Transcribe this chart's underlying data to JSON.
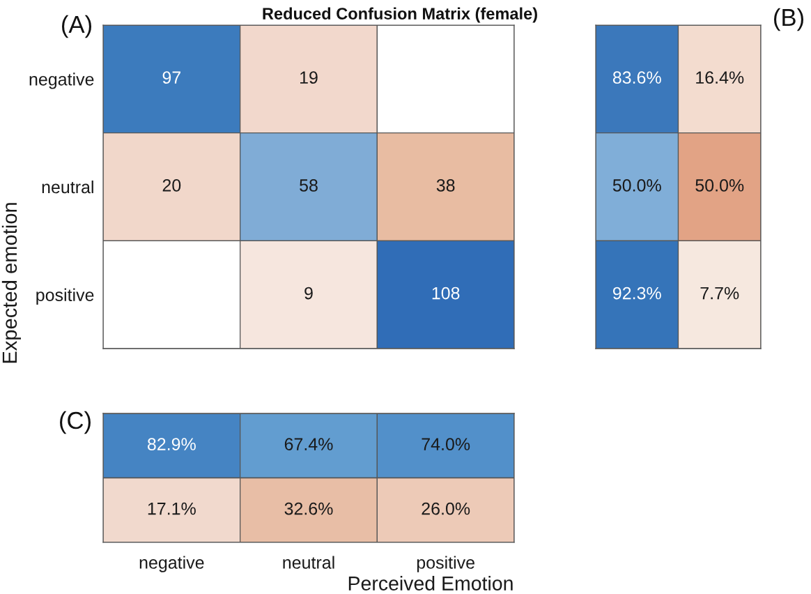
{
  "chart_data": [
    {
      "type": "heatmap",
      "title": "Reduced Confusion Matrix (female)",
      "ylabel": "Expected emotion",
      "categories": [
        null,
        null,
        null
      ],
      "y_categories": [
        "negative",
        "neutral",
        "positive"
      ],
      "cells": [
        [
          97,
          19,
          null
        ],
        [
          20,
          58,
          38
        ],
        [
          null,
          9,
          108
        ]
      ],
      "colors": [
        [
          "#3c7bbd",
          "#f2d8cc",
          null
        ],
        [
          "#f1d7ca",
          "#80acd6",
          "#e8bca2"
        ],
        [
          null,
          "#f6e6de",
          "#306db7"
        ]
      ],
      "data_labels": true,
      "tick_labels": "y",
      "annotations": [
        "(A)"
      ]
    },
    {
      "type": "heatmap",
      "categories": [
        null,
        null
      ],
      "y_categories": [
        null,
        null,
        null
      ],
      "cells": [
        [
          83.6,
          16.4
        ],
        [
          50.0,
          50.0
        ],
        [
          92.3,
          7.7
        ]
      ],
      "cell_labels": [
        [
          "83.6%",
          "16.4%"
        ],
        [
          "50.0%",
          "50.0%"
        ],
        [
          "92.3%",
          "7.7%"
        ]
      ],
      "colors": [
        [
          "#3b78bb",
          "#f3dccf"
        ],
        [
          "#80aed8",
          "#e2a385"
        ],
        [
          "#3574b9",
          "#f6e8df"
        ]
      ],
      "tick_labels": false,
      "annotations": [
        "(B)"
      ]
    },
    {
      "type": "heatmap",
      "xlabel": "Perceived Emotion",
      "categories": [
        "negative",
        "neutral",
        "positive"
      ],
      "y_categories": [
        null,
        null
      ],
      "cells": [
        [
          82.9,
          67.4,
          74.0
        ],
        [
          17.1,
          32.6,
          26.0
        ]
      ],
      "cell_labels": [
        [
          "82.9%",
          "67.4%",
          "74.0%"
        ],
        [
          "17.1%",
          "32.6%",
          "26.0%"
        ]
      ],
      "colors": [
        [
          "#4584c3",
          "#629dd0",
          "#5290ca"
        ],
        [
          "#f1d9cd",
          "#e8bea6",
          "#edcab7"
        ]
      ],
      "tick_labels": "x",
      "annotations": [
        "(C)"
      ]
    }
  ]
}
